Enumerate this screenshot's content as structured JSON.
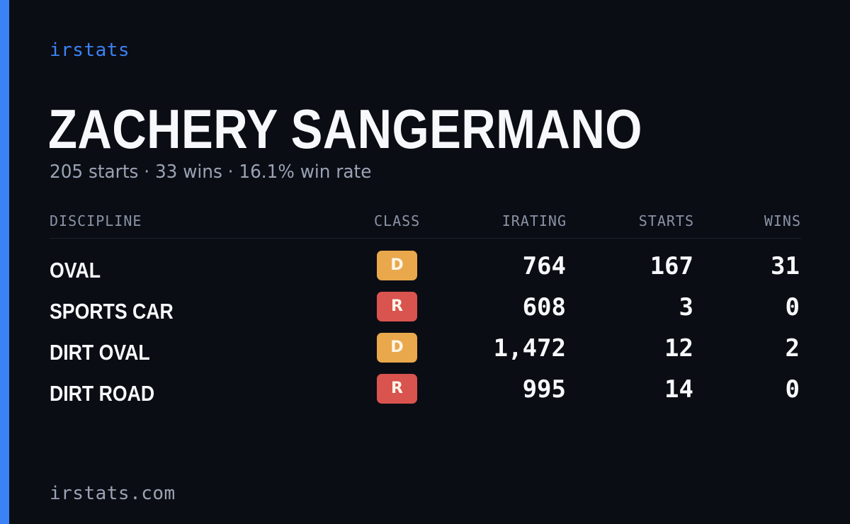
{
  "brand": "irstats",
  "driver": {
    "name": "ZACHERY SANGERMANO",
    "summary": "205 starts · 33 wins · 16.1% win rate"
  },
  "table": {
    "headers": {
      "discipline": "DISCIPLINE",
      "class": "CLASS",
      "irating": "IRATING",
      "starts": "STARTS",
      "wins": "WINS"
    },
    "rows": [
      {
        "discipline": "OVAL",
        "class": "D",
        "irating": "764",
        "starts": "167",
        "wins": "31"
      },
      {
        "discipline": "SPORTS CAR",
        "class": "R",
        "irating": "608",
        "starts": "3",
        "wins": "0"
      },
      {
        "discipline": "DIRT OVAL",
        "class": "D",
        "irating": "1,472",
        "starts": "12",
        "wins": "2"
      },
      {
        "discipline": "DIRT ROAD",
        "class": "R",
        "irating": "995",
        "starts": "14",
        "wins": "0"
      }
    ]
  },
  "footer": {
    "url": "irstats.com"
  },
  "colors": {
    "background": "#0b0d14",
    "accent": "#3b82f6",
    "class_D": "#e9a84b",
    "class_R": "#d9534f"
  }
}
